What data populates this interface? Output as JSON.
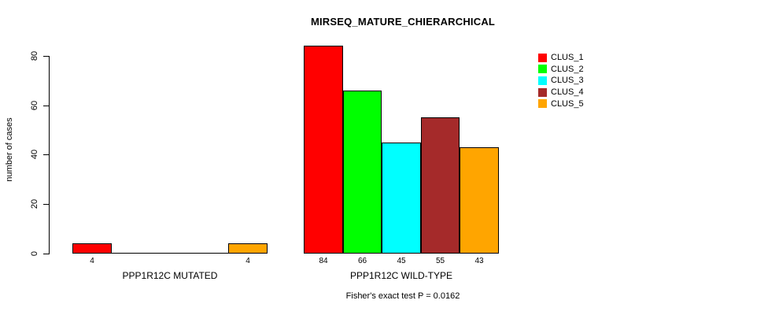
{
  "title": "MIRSEQ_MATURE_CHIERARCHICAL",
  "chart_data": {
    "type": "bar",
    "title": "MIRSEQ_MATURE_CHIERARCHICAL",
    "ylabel": "number of cases",
    "xlabel": "",
    "ylim": [
      0,
      84
    ],
    "yticks": [
      0,
      20,
      40,
      60,
      80
    ],
    "grid": false,
    "legend_position": "top-right",
    "categories": [
      "PPP1R12C MUTATED",
      "PPP1R12C WILD-TYPE"
    ],
    "series": [
      {
        "name": "CLUS_1",
        "color": "#FF0000",
        "values": [
          4,
          84
        ]
      },
      {
        "name": "CLUS_2",
        "color": "#00FF00",
        "values": [
          0,
          66
        ]
      },
      {
        "name": "CLUS_3",
        "color": "#00FFFF",
        "values": [
          0,
          45
        ]
      },
      {
        "name": "CLUS_4",
        "color": "#A52A2A",
        "values": [
          0,
          55
        ]
      },
      {
        "name": "CLUS_5",
        "color": "#FFA500",
        "values": [
          4,
          43
        ]
      }
    ],
    "bar_value_labels": [
      [
        "4",
        "",
        "",
        "",
        "4"
      ],
      [
        "84",
        "66",
        "45",
        "55",
        "43"
      ]
    ],
    "annotation": "Fisher's exact test P = 0.0162"
  }
}
